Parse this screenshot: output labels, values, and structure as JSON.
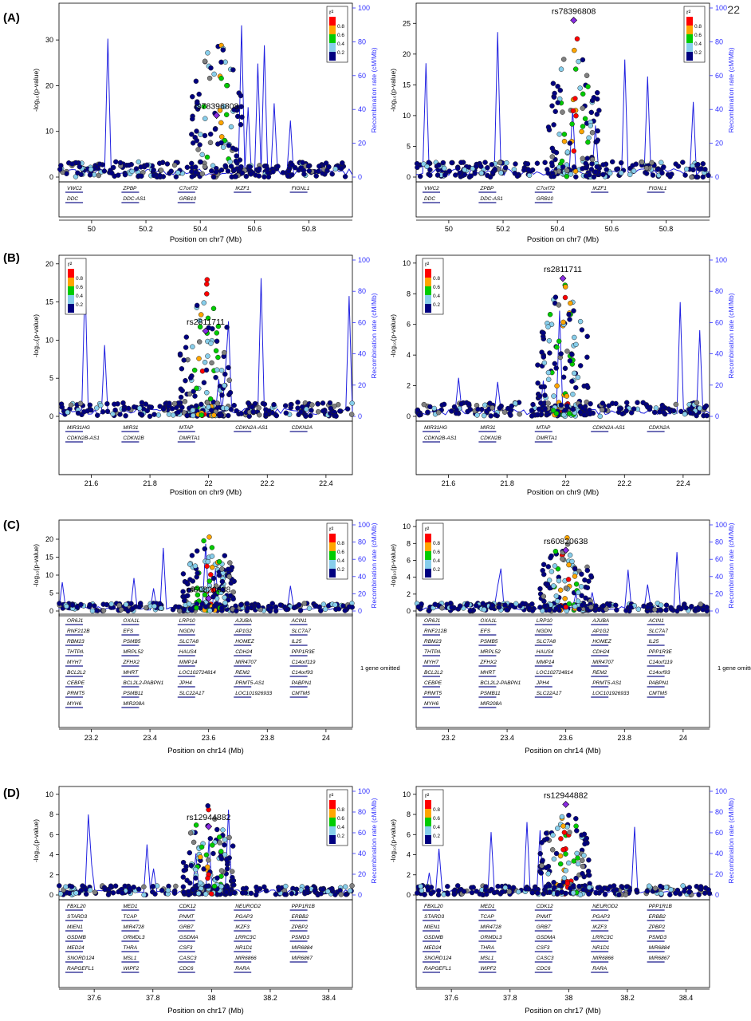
{
  "page_number": "22",
  "colors": {
    "r2_scale": [
      "#000080",
      "#87ceeb",
      "#00cc00",
      "#ffa500",
      "#ff0000"
    ],
    "lead_snp": "#8a2be2",
    "missing_r2": "#808080",
    "recombination": "#2020e0",
    "recomb_axis_text": "#3030ff"
  },
  "common": {
    "y_left_label": "-log₁₀(p-value)",
    "y_right_label": "Recombination rate (cM/Mb)",
    "legend_title": "r²",
    "legend_ticks": [
      "0.8",
      "0.6",
      "0.4",
      "0.2"
    ],
    "right_ticks": [
      "0",
      "20",
      "40",
      "60",
      "80",
      "100"
    ]
  },
  "rows": [
    {
      "label": "(A)",
      "xlabel": "Position on chr7 (Mb)",
      "xticks": [
        "50",
        "50.2",
        "50.4",
        "50.6",
        "50.8"
      ],
      "genes": [
        "VWC2",
        "ZPBP",
        "C7orf72",
        "IKZF1",
        "FIGNL1",
        "DDC",
        "DDC-AS1",
        "GRB10"
      ]
    },
    {
      "label": "(B)",
      "xlabel": "Position on chr9 (Mb)",
      "xticks": [
        "21.6",
        "21.8",
        "22",
        "22.2",
        "22.4"
      ],
      "genes": [
        "MIR31HG",
        "MIR31",
        "MTAP",
        "CDKN2A-AS1",
        "CDKN2A",
        "CDKN2B-AS1",
        "CDKN2B",
        "DMRTA1"
      ]
    },
    {
      "label": "(C)",
      "xlabel": "Position on chr14 (Mb)",
      "xticks": [
        "23.2",
        "23.4",
        "23.6",
        "23.8",
        "24"
      ],
      "genes": [
        "OR6J1",
        "OXA1L",
        "LRP10",
        "AJUBA",
        "ACIN1",
        "RNF212B",
        "EFS",
        "NGDN",
        "AP1G2",
        "SLC7A7",
        "RBM23",
        "PSMB5",
        "SLC7A8",
        "HOMEZ",
        "IL25",
        "THTPA",
        "MRPL52",
        "HAUS4",
        "CDH24",
        "PPP1R3E",
        "MYH7",
        "ZFHX2",
        "MMP14",
        "MIR4707",
        "C14orf119",
        "BCL2L2",
        "MHRT",
        "LOC102724814",
        "REM2",
        "C14orf93",
        "CEBPE",
        "BCL2L2-PABPN1",
        "JPH4",
        "PRMT5-AS1",
        "PABPN1",
        "PRMT5",
        "PSMB11",
        "SLC22A17",
        "LOC101926933",
        "CMTM5",
        "MYH6",
        "MIR208A"
      ],
      "omitted_note": "1 gene omitted"
    },
    {
      "label": "(D)",
      "xlabel": "Position on chr17 (Mb)",
      "xticks": [
        "37.6",
        "37.8",
        "38",
        "38.2",
        "38.4"
      ],
      "genes": [
        "FBXL20",
        "MED1",
        "CDK12",
        "NEUROD2",
        "PPP1R1B",
        "STARD3",
        "TCAP",
        "PNMT",
        "PGAP3",
        "ERBB2",
        "MIEN1",
        "MIR4728",
        "GRB7",
        "IKZF3",
        "ZPBP2",
        "GSDMB",
        "ORMDL3",
        "GSDMA",
        "LRRC3C",
        "PSMD3",
        "MED24",
        "THRA",
        "CSF3",
        "NR1D1",
        "MIR6884",
        "SNORD124",
        "MSL1",
        "CASC3",
        "MIR6866",
        "MIR6867",
        "RAPGEFL1",
        "WIPF2",
        "CDC6",
        "RARA"
      ]
    }
  ],
  "chart_data": [
    {
      "type": "scatter",
      "panel": "A-left",
      "xlabel": "Position on chr7 (Mb)",
      "ylabel": "-log₁₀(p-value)",
      "y2label": "Recombination rate (cM/Mb)",
      "xlim": [
        49.88,
        50.96
      ],
      "ylim": [
        0,
        37
      ],
      "y2lim": [
        0,
        100
      ],
      "yticks": [
        0,
        10,
        20,
        30
      ],
      "legend": "top-right",
      "lead_snp": {
        "name": "rs78396808",
        "x": 50.46,
        "y": 13.5
      }
    },
    {
      "type": "scatter",
      "panel": "A-right",
      "xlabel": "Position on chr7 (Mb)",
      "ylabel": "-log₁₀(p-value)",
      "y2label": "Recombination rate (cM/Mb)",
      "xlim": [
        49.88,
        50.96
      ],
      "ylim": [
        0,
        27.5
      ],
      "y2lim": [
        0,
        100
      ],
      "yticks": [
        0,
        5,
        10,
        15,
        20,
        25
      ],
      "legend": "top-right",
      "lead_snp": {
        "name": "rs78396808",
        "x": 50.46,
        "y": 25.5
      }
    },
    {
      "type": "scatter",
      "panel": "B-left",
      "xlabel": "Position on chr9 (Mb)",
      "ylabel": "-log₁₀(p-value)",
      "y2label": "Recombination rate (cM/Mb)",
      "xlim": [
        21.49,
        22.49
      ],
      "ylim": [
        0,
        20.5
      ],
      "y2lim": [
        0,
        100
      ],
      "yticks": [
        0,
        5,
        10,
        15,
        20
      ],
      "legend": "top-left",
      "lead_snp": {
        "name": "rs2811711",
        "x": 21.99,
        "y": 11.2
      }
    },
    {
      "type": "scatter",
      "panel": "B-right",
      "xlabel": "Position on chr9 (Mb)",
      "ylabel": "-log₁₀(p-value)",
      "y2label": "Recombination rate (cM/Mb)",
      "xlim": [
        21.49,
        22.49
      ],
      "ylim": [
        0,
        10.2
      ],
      "y2lim": [
        0,
        100
      ],
      "yticks": [
        0,
        2,
        4,
        6,
        8,
        10
      ],
      "legend": "top-left",
      "lead_snp": {
        "name": "rs2811711",
        "x": 21.99,
        "y": 9.0
      }
    },
    {
      "type": "scatter",
      "panel": "C-left",
      "xlabel": "Position on chr14 (Mb)",
      "ylabel": "-log₁₀(p-value)",
      "y2label": "Recombination rate (cM/Mb)",
      "xlim": [
        23.09,
        24.09
      ],
      "ylim": [
        0,
        24
      ],
      "y2lim": [
        0,
        100
      ],
      "yticks": [
        0,
        5,
        10,
        15,
        20
      ],
      "legend": "top-right",
      "lead_snp": {
        "name": "rs60820638",
        "x": 23.6,
        "y": 3.5
      }
    },
    {
      "type": "scatter",
      "panel": "C-right",
      "xlabel": "Position on chr14 (Mb)",
      "ylabel": "-log₁₀(p-value)",
      "y2label": "Recombination rate (cM/Mb)",
      "xlim": [
        23.09,
        24.09
      ],
      "ylim": [
        0,
        10.2
      ],
      "y2lim": [
        0,
        100
      ],
      "yticks": [
        0,
        2,
        4,
        6,
        8,
        10
      ],
      "legend": "top-left",
      "lead_snp": {
        "name": "rs60820638",
        "x": 23.6,
        "y": 7.2
      }
    },
    {
      "type": "scatter",
      "panel": "D-left",
      "xlabel": "Position on chr17 (Mb)",
      "ylabel": "-log₁₀(p-value)",
      "y2label": "Recombination rate (cM/Mb)",
      "xlim": [
        37.48,
        38.48
      ],
      "ylim": [
        0,
        10.3
      ],
      "y2lim": [
        0,
        100
      ],
      "yticks": [
        0,
        2,
        4,
        6,
        8,
        10
      ],
      "legend": "top-right",
      "lead_snp": {
        "name": "rs12944882",
        "x": 37.99,
        "y": 6.8
      }
    },
    {
      "type": "scatter",
      "panel": "D-right",
      "xlabel": "Position on chr17 (Mb)",
      "ylabel": "-log₁₀(p-value)",
      "y2label": "Recombination rate (cM/Mb)",
      "xlim": [
        37.48,
        38.48
      ],
      "ylim": [
        0,
        10.3
      ],
      "y2lim": [
        0,
        100
      ],
      "yticks": [
        0,
        2,
        4,
        6,
        8,
        10
      ],
      "legend": "top-left",
      "lead_snp": {
        "name": "rs12944882",
        "x": 37.99,
        "y": 9.0
      }
    }
  ]
}
